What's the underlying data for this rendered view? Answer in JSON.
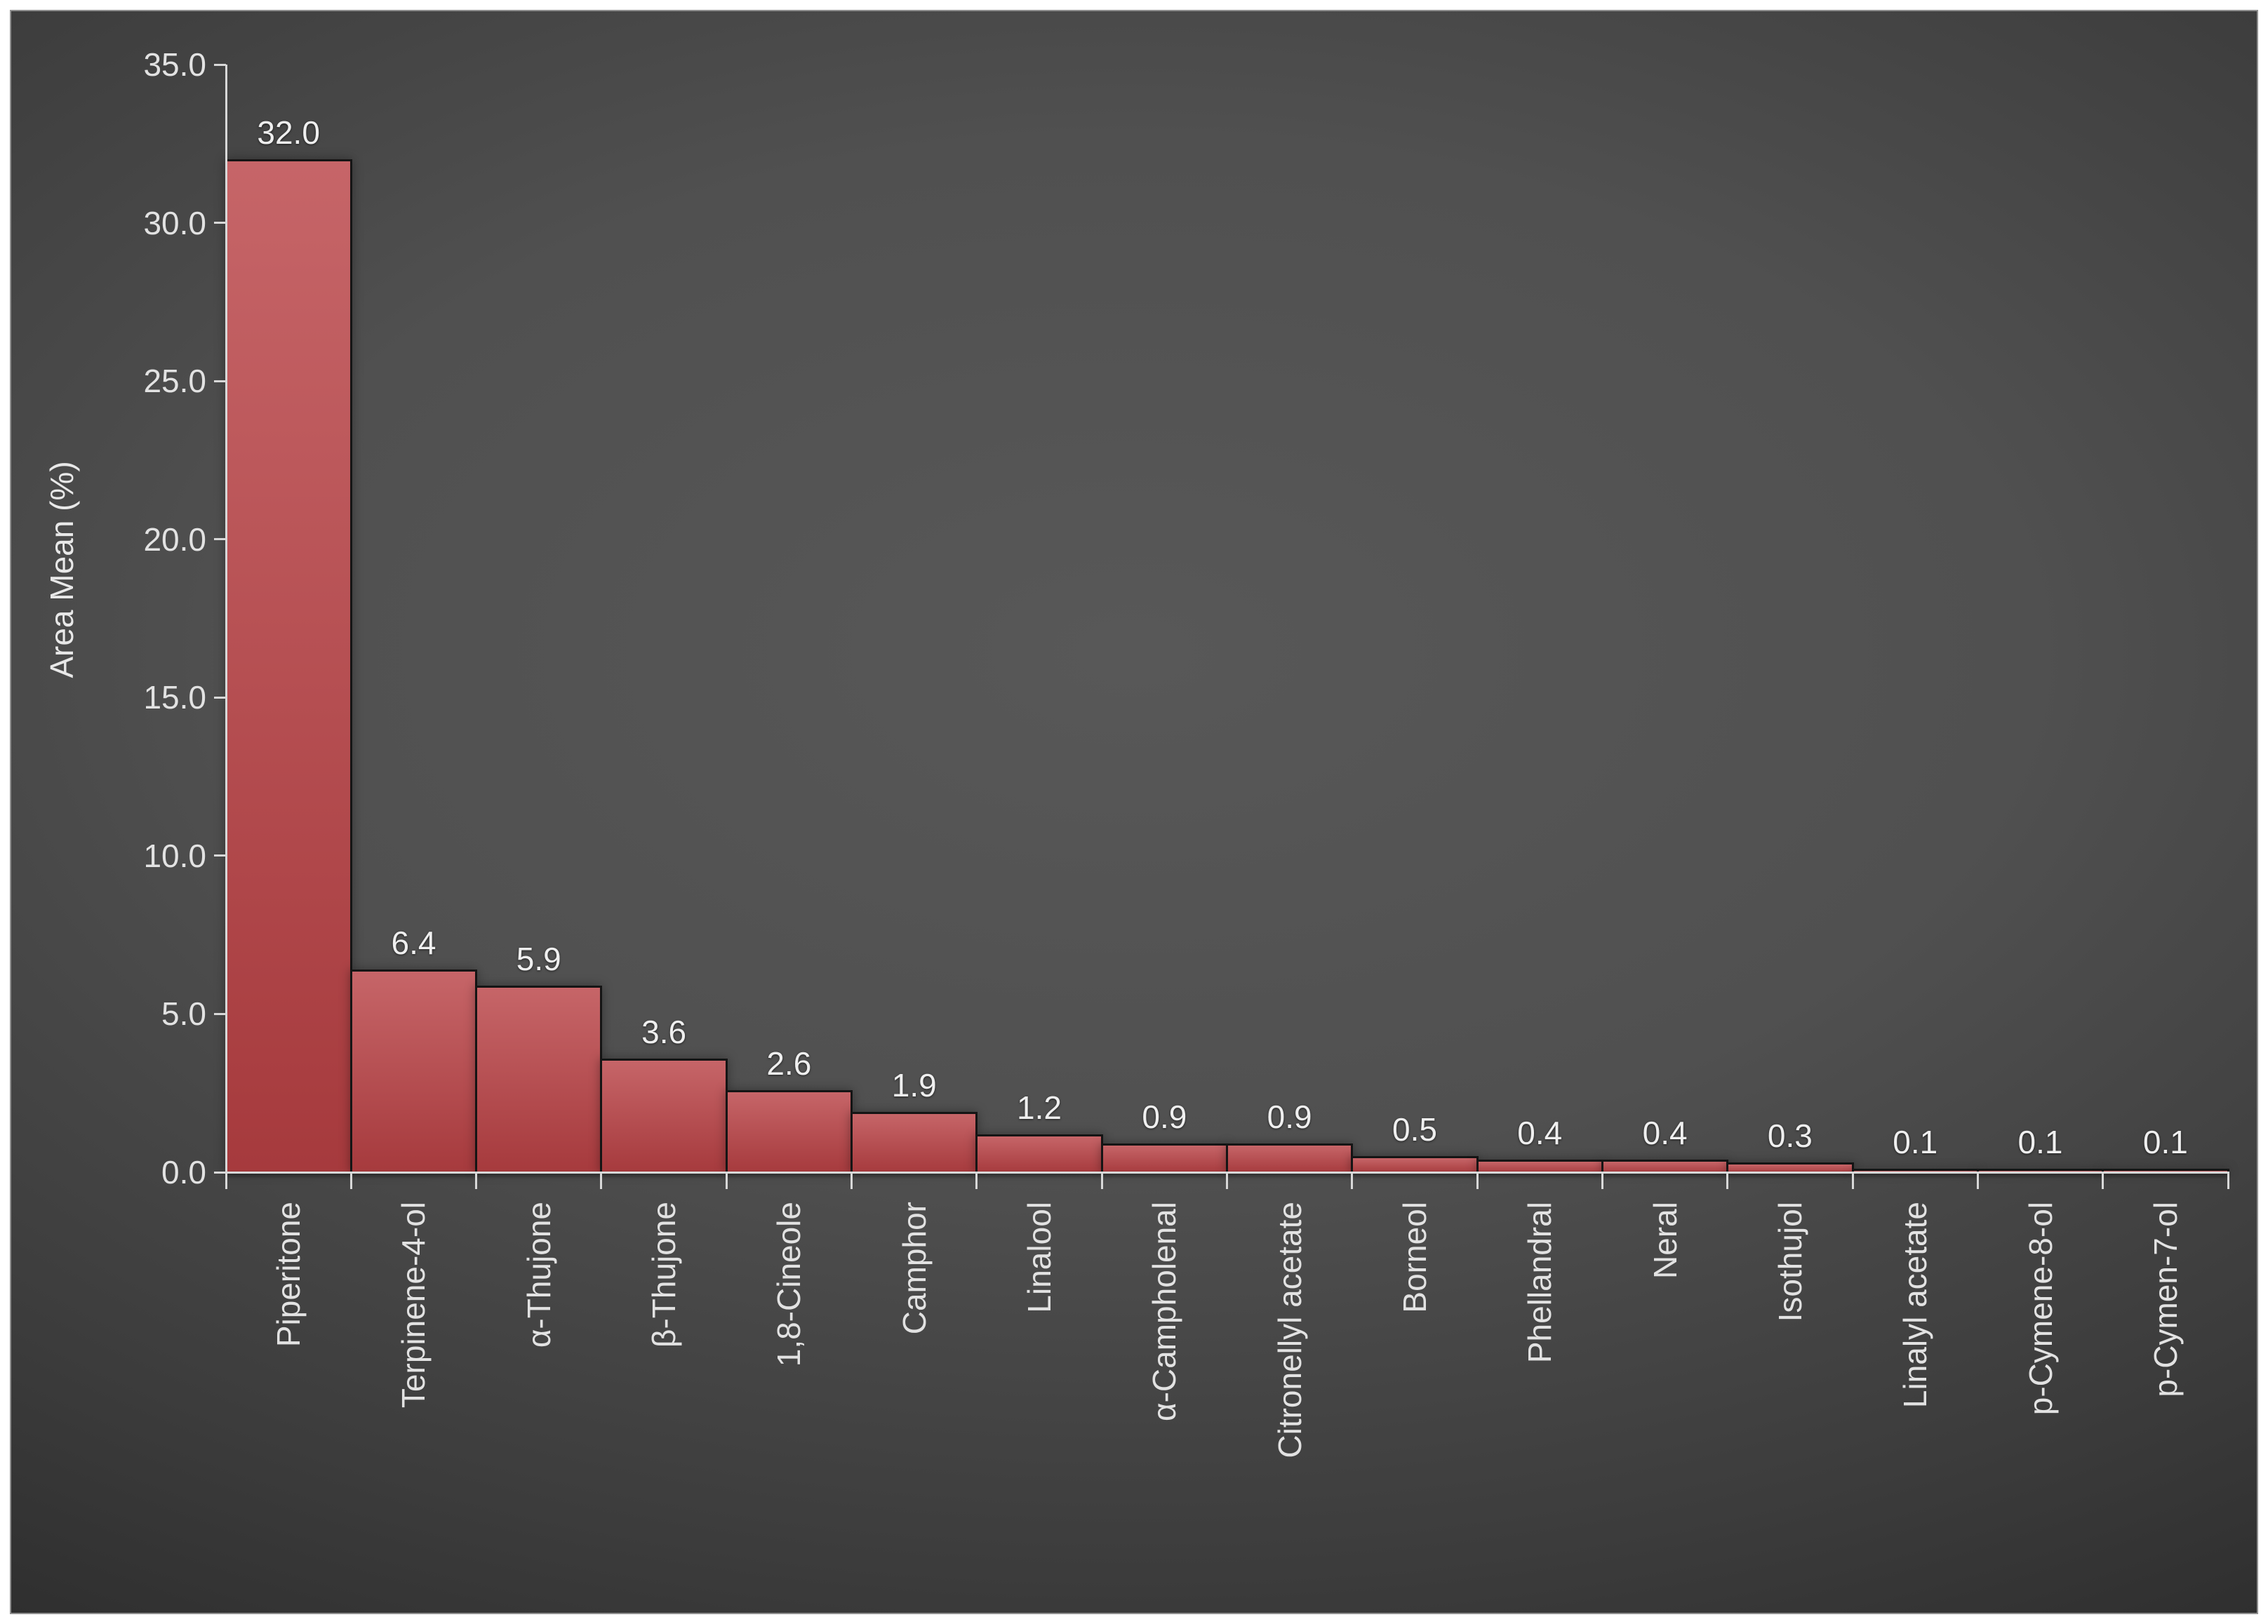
{
  "chart_data": {
    "type": "bar",
    "title": "",
    "xlabel": "",
    "ylabel": "Area Mean (%)",
    "categories": [
      "Piperitone",
      "Terpinene-4-ol",
      "α-Thujone",
      "β-Thujone",
      "1,8-Cineole",
      "Camphor",
      "Linalool",
      "α-Campholenal",
      "Citronellyl acetate",
      "Borneol",
      "Phellandral",
      "Neral",
      "Isothujol",
      "Linalyl acetate",
      "p-Cymene-8-ol",
      "p-Cymen-7-ol"
    ],
    "values": [
      32.0,
      6.4,
      5.9,
      3.6,
      2.6,
      1.9,
      1.2,
      0.9,
      0.9,
      0.5,
      0.4,
      0.4,
      0.3,
      0.1,
      0.1,
      0.1
    ],
    "value_labels": [
      "32.0",
      "6.4",
      "5.9",
      "3.6",
      "2.6",
      "1.9",
      "1.2",
      "0.9",
      "0.9",
      "0.5",
      "0.4",
      "0.4",
      "0.3",
      "0.1",
      "0.1",
      "0.1"
    ],
    "ylim": [
      0,
      35
    ],
    "yticks": [
      0,
      5,
      10,
      15,
      20,
      25,
      30,
      35
    ],
    "ytick_labels": [
      "0.0",
      "5.0",
      "10.0",
      "15.0",
      "20.0",
      "25.0",
      "30.0",
      "35.0"
    ],
    "grid": false,
    "legend_position": "none",
    "bar_gap": 0,
    "colors": {
      "page_background": "#ffffff",
      "frame_border": "#8f8f8f",
      "background_center": "#585858",
      "background_edge": "#282828",
      "bar_fill_top": "#c66568",
      "bar_fill_bottom": "#a63a3d",
      "bar_border": "#151515",
      "axis_line": "#d8d8d8",
      "tick_text": "#e2e2e2",
      "value_text": "#efefef",
      "axis_title_text": "#e8e8e8"
    }
  }
}
